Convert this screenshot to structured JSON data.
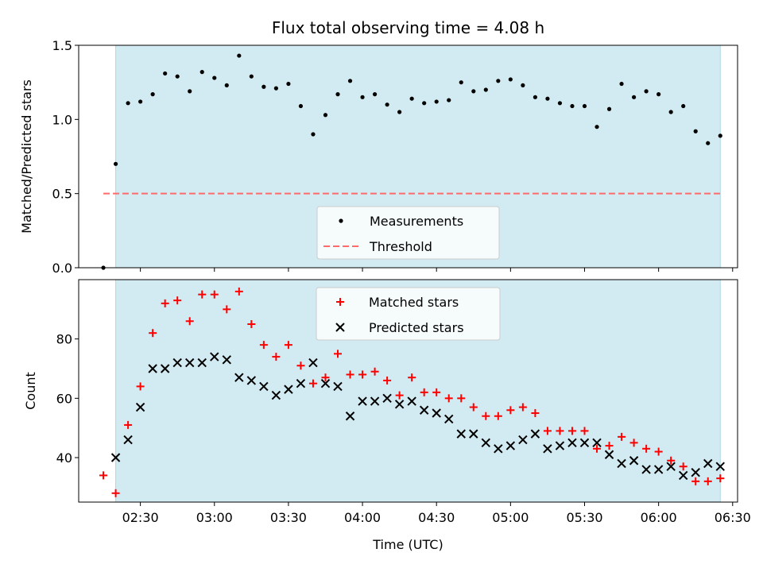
{
  "chart_data": [
    {
      "type": "scatter",
      "title": "Flux total observing time = 4.08 h",
      "xlabel": "",
      "ylabel": "Matched/Predicted stars",
      "ylim": [
        0,
        1.5
      ],
      "yticks": [
        0.0,
        0.5,
        1.0,
        1.5
      ],
      "ytick_labels": [
        "0.0",
        "0.5",
        "1.0",
        "1.5"
      ],
      "xlim": [
        "02:05",
        "06:32"
      ],
      "shaded_interval": [
        "02:20",
        "06:25"
      ],
      "shade_color": "#add8e6",
      "legend_position": "lower center",
      "series": [
        {
          "name": "Measurements",
          "marker": "dot",
          "color": "#000000",
          "points": [
            [
              "02:15",
              0.0
            ],
            [
              "02:20",
              0.7
            ],
            [
              "02:25",
              1.11
            ],
            [
              "02:30",
              1.12
            ],
            [
              "02:35",
              1.17
            ],
            [
              "02:40",
              1.31
            ],
            [
              "02:45",
              1.29
            ],
            [
              "02:50",
              1.19
            ],
            [
              "02:55",
              1.32
            ],
            [
              "03:00",
              1.28
            ],
            [
              "03:05",
              1.23
            ],
            [
              "03:10",
              1.43
            ],
            [
              "03:15",
              1.29
            ],
            [
              "03:20",
              1.22
            ],
            [
              "03:25",
              1.21
            ],
            [
              "03:30",
              1.24
            ],
            [
              "03:35",
              1.09
            ],
            [
              "03:40",
              0.9
            ],
            [
              "03:45",
              1.03
            ],
            [
              "03:50",
              1.17
            ],
            [
              "03:55",
              1.26
            ],
            [
              "04:00",
              1.15
            ],
            [
              "04:05",
              1.17
            ],
            [
              "04:10",
              1.1
            ],
            [
              "04:15",
              1.05
            ],
            [
              "04:20",
              1.14
            ],
            [
              "04:25",
              1.11
            ],
            [
              "04:30",
              1.12
            ],
            [
              "04:35",
              1.13
            ],
            [
              "04:40",
              1.25
            ],
            [
              "04:45",
              1.19
            ],
            [
              "04:50",
              1.2
            ],
            [
              "04:55",
              1.26
            ],
            [
              "05:00",
              1.27
            ],
            [
              "05:05",
              1.23
            ],
            [
              "05:10",
              1.15
            ],
            [
              "05:15",
              1.14
            ],
            [
              "05:20",
              1.11
            ],
            [
              "05:25",
              1.09
            ],
            [
              "05:30",
              1.09
            ],
            [
              "05:35",
              0.95
            ],
            [
              "05:40",
              1.07
            ],
            [
              "05:45",
              1.24
            ],
            [
              "05:50",
              1.15
            ],
            [
              "05:55",
              1.19
            ],
            [
              "06:00",
              1.17
            ],
            [
              "06:05",
              1.05
            ],
            [
              "06:10",
              1.09
            ],
            [
              "06:15",
              0.92
            ],
            [
              "06:20",
              0.84
            ],
            [
              "06:25",
              0.89
            ]
          ]
        },
        {
          "name": "Threshold",
          "marker": "dashed-line",
          "color": "#ff6b6b",
          "points": [
            [
              "02:15",
              0.5
            ],
            [
              "06:25",
              0.5
            ]
          ]
        }
      ]
    },
    {
      "type": "scatter",
      "title": "",
      "xlabel": "Time (UTC)",
      "ylabel": "Count",
      "ylim": [
        25,
        100
      ],
      "yticks": [
        40,
        60,
        80
      ],
      "ytick_labels": [
        "40",
        "60",
        "80"
      ],
      "xlim": [
        "02:05",
        "06:32"
      ],
      "xticks": [
        "02:30",
        "03:00",
        "03:30",
        "04:00",
        "04:30",
        "05:00",
        "05:30",
        "06:00",
        "06:30"
      ],
      "xtick_labels": [
        "02:30",
        "03:00",
        "03:30",
        "04:00",
        "04:30",
        "05:00",
        "05:30",
        "06:00",
        "06:30"
      ],
      "shaded_interval": [
        "02:20",
        "06:25"
      ],
      "shade_color": "#add8e6",
      "legend_position": "upper center",
      "series": [
        {
          "name": "Matched stars",
          "marker": "plus",
          "color": "#ff0000",
          "points": [
            [
              "02:15",
              34
            ],
            [
              "02:20",
              28
            ],
            [
              "02:25",
              51
            ],
            [
              "02:30",
              64
            ],
            [
              "02:35",
              82
            ],
            [
              "02:40",
              92
            ],
            [
              "02:45",
              93
            ],
            [
              "02:50",
              86
            ],
            [
              "02:55",
              95
            ],
            [
              "03:00",
              95
            ],
            [
              "03:05",
              90
            ],
            [
              "03:10",
              96
            ],
            [
              "03:15",
              85
            ],
            [
              "03:20",
              78
            ],
            [
              "03:25",
              74
            ],
            [
              "03:30",
              78
            ],
            [
              "03:35",
              71
            ],
            [
              "03:40",
              65
            ],
            [
              "03:45",
              67
            ],
            [
              "03:50",
              75
            ],
            [
              "03:55",
              68
            ],
            [
              "04:00",
              68
            ],
            [
              "04:05",
              69
            ],
            [
              "04:10",
              66
            ],
            [
              "04:15",
              61
            ],
            [
              "04:20",
              67
            ],
            [
              "04:25",
              62
            ],
            [
              "04:30",
              62
            ],
            [
              "04:35",
              60
            ],
            [
              "04:40",
              60
            ],
            [
              "04:45",
              57
            ],
            [
              "04:50",
              54
            ],
            [
              "04:55",
              54
            ],
            [
              "05:00",
              56
            ],
            [
              "05:05",
              57
            ],
            [
              "05:10",
              55
            ],
            [
              "05:15",
              49
            ],
            [
              "05:20",
              49
            ],
            [
              "05:25",
              49
            ],
            [
              "05:30",
              49
            ],
            [
              "05:35",
              43
            ],
            [
              "05:40",
              44
            ],
            [
              "05:45",
              47
            ],
            [
              "05:50",
              45
            ],
            [
              "05:55",
              43
            ],
            [
              "06:00",
              42
            ],
            [
              "06:05",
              39
            ],
            [
              "06:10",
              37
            ],
            [
              "06:15",
              32
            ],
            [
              "06:20",
              32
            ],
            [
              "06:25",
              33
            ]
          ]
        },
        {
          "name": "Predicted stars",
          "marker": "x",
          "color": "#000000",
          "points": [
            [
              "02:20",
              40
            ],
            [
              "02:25",
              46
            ],
            [
              "02:30",
              57
            ],
            [
              "02:35",
              70
            ],
            [
              "02:40",
              70
            ],
            [
              "02:45",
              72
            ],
            [
              "02:50",
              72
            ],
            [
              "02:55",
              72
            ],
            [
              "03:00",
              74
            ],
            [
              "03:05",
              73
            ],
            [
              "03:10",
              67
            ],
            [
              "03:15",
              66
            ],
            [
              "03:20",
              64
            ],
            [
              "03:25",
              61
            ],
            [
              "03:30",
              63
            ],
            [
              "03:35",
              65
            ],
            [
              "03:40",
              72
            ],
            [
              "03:45",
              65
            ],
            [
              "03:50",
              64
            ],
            [
              "03:55",
              54
            ],
            [
              "04:00",
              59
            ],
            [
              "04:05",
              59
            ],
            [
              "04:10",
              60
            ],
            [
              "04:15",
              58
            ],
            [
              "04:20",
              59
            ],
            [
              "04:25",
              56
            ],
            [
              "04:30",
              55
            ],
            [
              "04:35",
              53
            ],
            [
              "04:40",
              48
            ],
            [
              "04:45",
              48
            ],
            [
              "04:50",
              45
            ],
            [
              "04:55",
              43
            ],
            [
              "05:00",
              44
            ],
            [
              "05:05",
              46
            ],
            [
              "05:10",
              48
            ],
            [
              "05:15",
              43
            ],
            [
              "05:20",
              44
            ],
            [
              "05:25",
              45
            ],
            [
              "05:30",
              45
            ],
            [
              "05:35",
              45
            ],
            [
              "05:40",
              41
            ],
            [
              "05:45",
              38
            ],
            [
              "05:50",
              39
            ],
            [
              "05:55",
              36
            ],
            [
              "06:00",
              36
            ],
            [
              "06:05",
              37
            ],
            [
              "06:10",
              34
            ],
            [
              "06:15",
              35
            ],
            [
              "06:20",
              38
            ],
            [
              "06:25",
              37
            ]
          ]
        }
      ]
    }
  ]
}
